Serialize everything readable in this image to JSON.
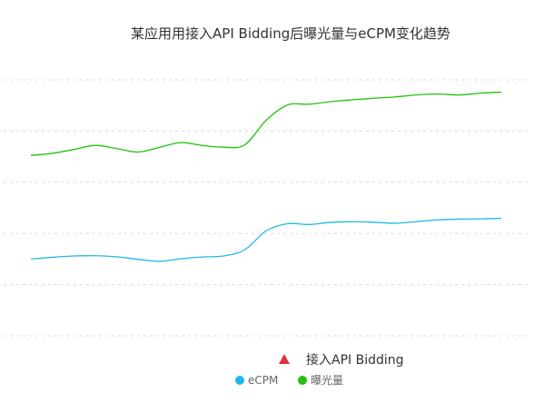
{
  "chart_data": {
    "type": "line",
    "title": "某应用用接入API Bidding后曝光量与eCPM变化趋势",
    "xlabel": "",
    "ylabel": "",
    "grid": true,
    "x": [
      0,
      1,
      2,
      3,
      4,
      5,
      6,
      7,
      8,
      9,
      10,
      11,
      12,
      13,
      14,
      15,
      16,
      17,
      18,
      19,
      20,
      21,
      22
    ],
    "ylim": [
      0,
      100
    ],
    "series": [
      {
        "name": "曝光量",
        "color": "#22c20e",
        "values": [
          70.5,
          71.3,
          72.8,
          74.4,
          73.2,
          71.8,
          73.6,
          75.5,
          74.4,
          73.7,
          74.6,
          84.2,
          90.2,
          90.5,
          91.5,
          92.2,
          92.8,
          93.3,
          94.1,
          94.5,
          94.1,
          94.8,
          95.2
        ]
      },
      {
        "name": "eCPM",
        "color": "#1fb8e8",
        "values": [
          30.0,
          30.7,
          31.2,
          31.3,
          30.9,
          29.9,
          29.1,
          30.1,
          30.8,
          31.2,
          33.6,
          41.0,
          43.8,
          43.5,
          44.3,
          44.6,
          44.4,
          44.0,
          44.6,
          45.3,
          45.6,
          45.7,
          45.9
        ]
      }
    ],
    "legend": {
      "position": "bottom",
      "marker_label": "接入API Bidding",
      "marker_color": "#e03040",
      "items": [
        {
          "label": "eCPM",
          "color": "#1fb8e8"
        },
        {
          "label": "曝光量",
          "color": "#22c20e"
        }
      ]
    }
  }
}
